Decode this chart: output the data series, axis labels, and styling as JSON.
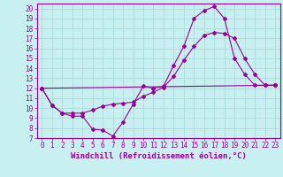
{
  "title": "",
  "xlabel": "Windchill (Refroidissement éolien,°C)",
  "ylabel": "",
  "background_color": "#c8f0f0",
  "line_color": "#990099",
  "grid_color": "#a8d8d8",
  "xlim": [
    -0.5,
    23.5
  ],
  "ylim": [
    7,
    20.5
  ],
  "xticks": [
    0,
    1,
    2,
    3,
    4,
    5,
    6,
    7,
    8,
    9,
    10,
    11,
    12,
    13,
    14,
    15,
    16,
    17,
    18,
    19,
    20,
    21,
    22,
    23
  ],
  "yticks": [
    7,
    8,
    9,
    10,
    11,
    12,
    13,
    14,
    15,
    16,
    17,
    18,
    19,
    20
  ],
  "line1_x": [
    0,
    1,
    2,
    3,
    4,
    5,
    6,
    7,
    8,
    9,
    10,
    11,
    12,
    13,
    14,
    15,
    16,
    17,
    18,
    19,
    20,
    21,
    22,
    23
  ],
  "line1_y": [
    12,
    10.3,
    9.5,
    9.2,
    9.2,
    7.9,
    7.8,
    7.2,
    8.6,
    10.4,
    12.2,
    12.0,
    12.2,
    14.3,
    16.2,
    19.0,
    19.8,
    20.2,
    19.0,
    15.0,
    13.4,
    12.3,
    12.3,
    12.3
  ],
  "line2_x": [
    0,
    1,
    2,
    3,
    4,
    5,
    6,
    7,
    8,
    9,
    10,
    11,
    12,
    13,
    14,
    15,
    16,
    17,
    18,
    19,
    20,
    21,
    22,
    23
  ],
  "line2_y": [
    12,
    10.3,
    9.5,
    9.5,
    9.5,
    9.8,
    10.2,
    10.4,
    10.5,
    10.6,
    11.2,
    11.6,
    12.1,
    13.2,
    14.8,
    16.2,
    17.3,
    17.6,
    17.5,
    17.0,
    15.0,
    13.4,
    12.3,
    12.3
  ],
  "line3_x": [
    0,
    23
  ],
  "line3_y": [
    12,
    12.3
  ],
  "fontsize": 6.5,
  "tick_fontsize": 5.5,
  "marker": "D",
  "markersize": 2.0,
  "linewidth": 0.8
}
